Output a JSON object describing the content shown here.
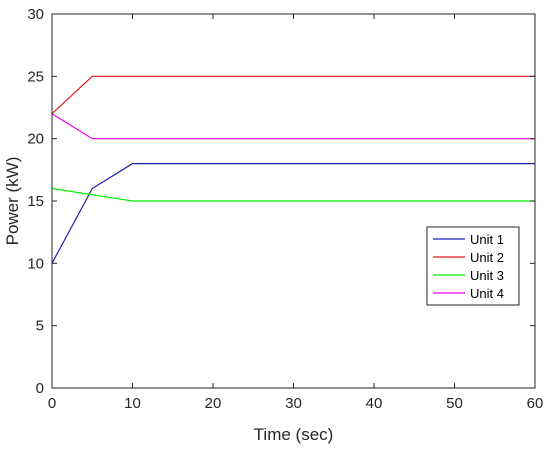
{
  "chart_data": {
    "type": "line",
    "title": "",
    "xlabel": "Time (sec)",
    "ylabel": "Power (kW)",
    "xlim": [
      0,
      60
    ],
    "ylim": [
      0,
      30
    ],
    "xticks": [
      0,
      10,
      20,
      30,
      40,
      50,
      60
    ],
    "yticks": [
      0,
      5,
      10,
      15,
      20,
      25,
      30
    ],
    "grid": false,
    "legend_position": "center-right",
    "series": [
      {
        "name": "Unit 1",
        "color": "#1f1fb4",
        "x": [
          0,
          5,
          10,
          60
        ],
        "y": [
          10,
          16,
          18,
          18
        ]
      },
      {
        "name": "Unit 2",
        "color": "#e41a1c",
        "x": [
          0,
          5,
          60
        ],
        "y": [
          22,
          25,
          25
        ]
      },
      {
        "name": "Unit 3",
        "color": "#00ee00",
        "x": [
          0,
          10,
          60
        ],
        "y": [
          16,
          15,
          15
        ]
      },
      {
        "name": "Unit 4",
        "color": "#ee00ee",
        "x": [
          0,
          5,
          60
        ],
        "y": [
          22,
          20,
          20
        ]
      }
    ]
  }
}
